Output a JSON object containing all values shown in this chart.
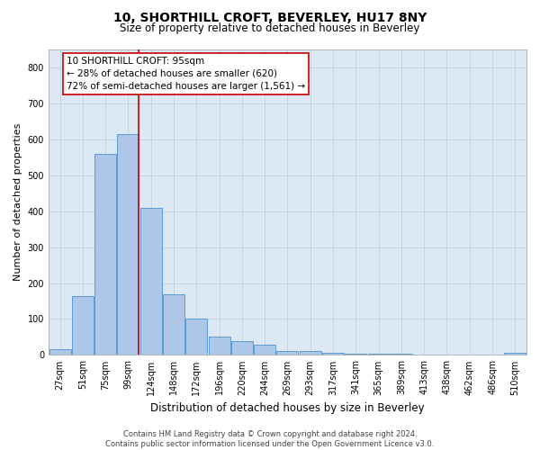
{
  "title1": "10, SHORTHILL CROFT, BEVERLEY, HU17 8NY",
  "title2": "Size of property relative to detached houses in Beverley",
  "xlabel": "Distribution of detached houses by size in Beverley",
  "ylabel": "Number of detached properties",
  "footer1": "Contains HM Land Registry data © Crown copyright and database right 2024.",
  "footer2": "Contains public sector information licensed under the Open Government Licence v3.0.",
  "categories": [
    "27sqm",
    "51sqm",
    "75sqm",
    "99sqm",
    "124sqm",
    "148sqm",
    "172sqm",
    "196sqm",
    "220sqm",
    "244sqm",
    "269sqm",
    "293sqm",
    "317sqm",
    "341sqm",
    "365sqm",
    "389sqm",
    "413sqm",
    "438sqm",
    "462sqm",
    "486sqm",
    "510sqm"
  ],
  "values": [
    15,
    165,
    560,
    615,
    410,
    170,
    100,
    50,
    38,
    28,
    12,
    10,
    5,
    4,
    4,
    3,
    1,
    0,
    0,
    0,
    5
  ],
  "bar_color": "#aec6e8",
  "bar_edge_color": "#5b9bd5",
  "reference_line_color": "#cc0000",
  "ref_line_x": 3.45,
  "annotation_text_line1": "10 SHORTHILL CROFT: 95sqm",
  "annotation_text_line2": "← 28% of detached houses are smaller (620)",
  "annotation_text_line3": "72% of semi-detached houses are larger (1,561) →",
  "ylim": [
    0,
    850
  ],
  "yticks": [
    0,
    100,
    200,
    300,
    400,
    500,
    600,
    700,
    800
  ],
  "grid_color": "#c8d4e3",
  "background_color": "#dde8f5",
  "title1_fontsize": 10,
  "title2_fontsize": 8.5,
  "xlabel_fontsize": 8.5,
  "ylabel_fontsize": 8,
  "tick_fontsize": 7,
  "footer_fontsize": 6,
  "ann_fontsize": 7.5
}
